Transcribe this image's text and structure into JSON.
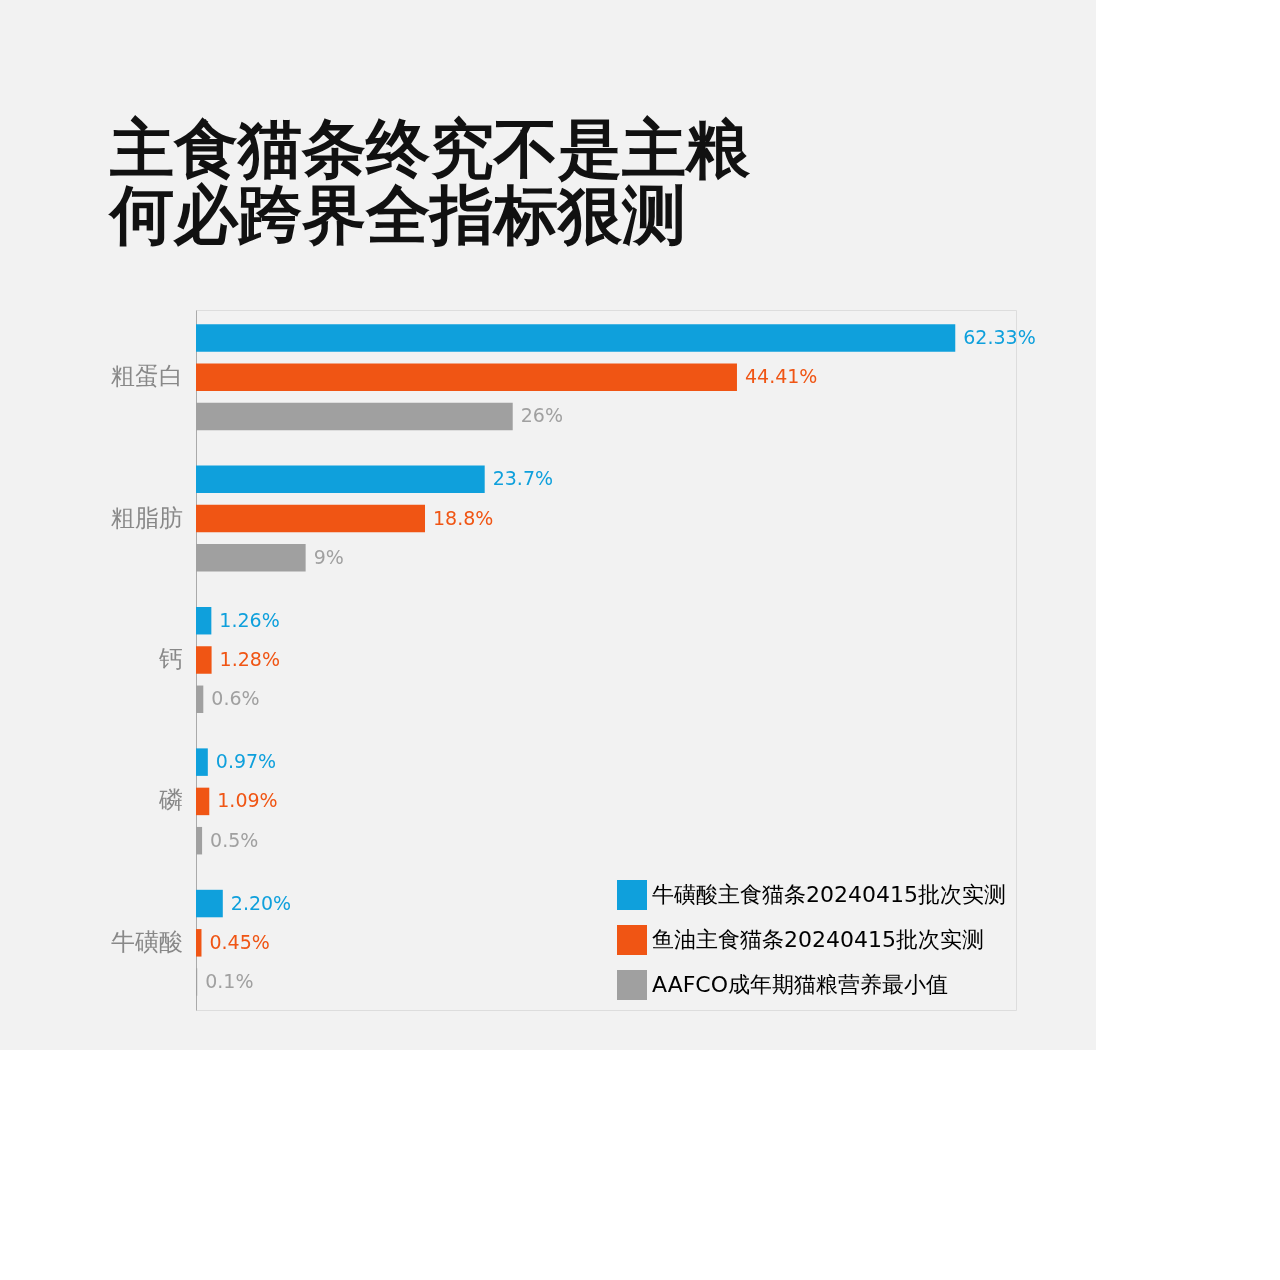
{
  "chart_data": {
    "type": "bar",
    "orientation": "horizontal",
    "title": "主食猫条终究不是主粮何必跨界全指标狠测",
    "categories": [
      "粗蛋白",
      "粗脂肪",
      "钙",
      "磷",
      "牛磺酸"
    ],
    "series": [
      {
        "name": "牛磺酸主食猫条20240415批次实测",
        "color": "#0fa0dc",
        "values": [
          62.33,
          23.7,
          1.26,
          0.97,
          2.2
        ],
        "value_labels": [
          "62.33%",
          "23.7%",
          "1.26%",
          "0.97%",
          "2.20%"
        ]
      },
      {
        "name": "鱼油主食猫条20240415批次实测",
        "color": "#f05514",
        "values": [
          44.41,
          18.8,
          1.28,
          1.09,
          0.45
        ],
        "value_labels": [
          "44.41%",
          "18.8%",
          "1.28%",
          "1.09%",
          "0.45%"
        ]
      },
      {
        "name": "AAFCO成年期猫粮营养最小值",
        "color": "#a0a0a0",
        "values": [
          26,
          9,
          0.6,
          0.5,
          0.1
        ],
        "value_labels": [
          "26%",
          "9%",
          "0.6%",
          "0.5%",
          "0.1%"
        ]
      }
    ],
    "legend": "bottom right"
  }
}
